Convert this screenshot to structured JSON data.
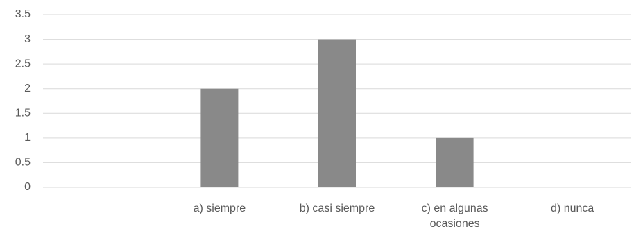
{
  "chart_data": {
    "type": "bar",
    "categories": [
      null,
      "a) siempre",
      "b) casi siempre",
      "c) en algunas ocasiones",
      "d) nunca"
    ],
    "values": [
      0,
      2,
      3,
      1,
      0
    ],
    "color": "#898989",
    "ylim": [
      0,
      3.5
    ],
    "yticks": [
      0,
      0.5,
      1,
      1.5,
      2,
      2.5,
      3,
      3.5
    ],
    "grid": true
  }
}
